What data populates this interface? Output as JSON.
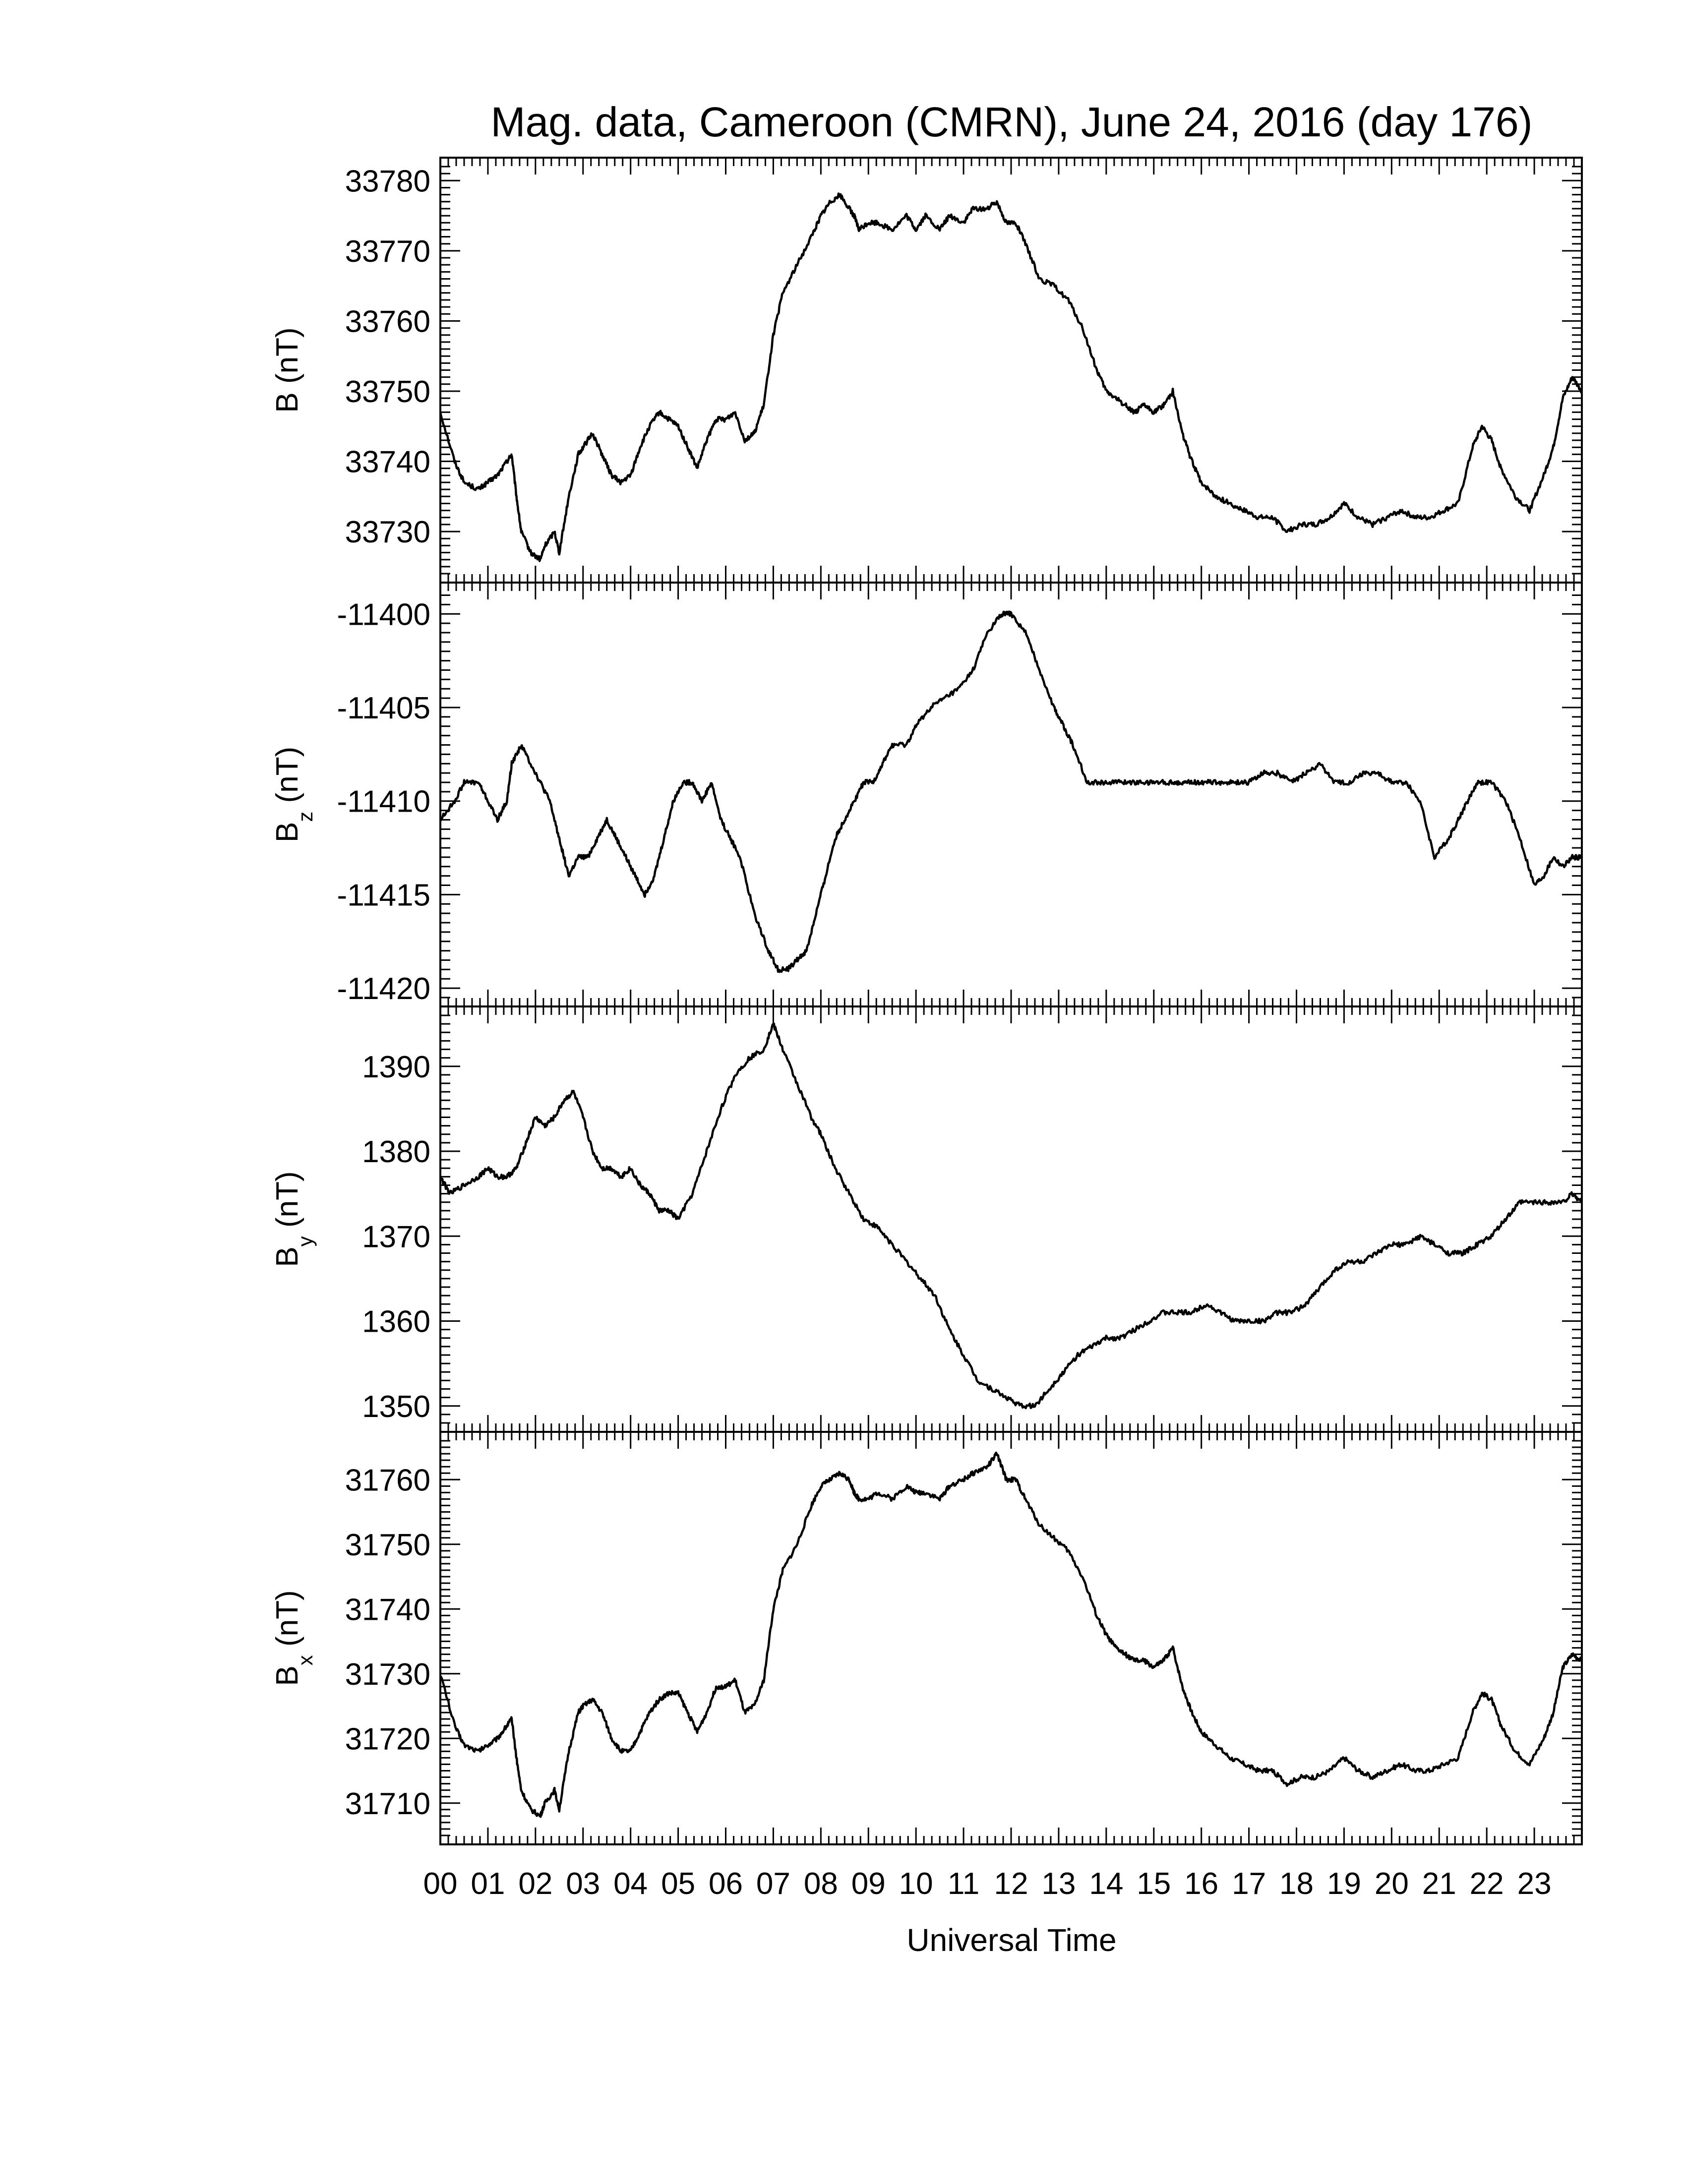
{
  "title": "Mag. data, Cameroon (CMRN), June 24, 2016 (day 176)",
  "chart_data": {
    "type": "line",
    "title": "Mag. data, Cameroon (CMRN), June 24, 2016 (day 176)",
    "xlabel": "Universal Time",
    "xlim": [
      0,
      24
    ],
    "xtick_labels": [
      "00",
      "01",
      "02",
      "03",
      "04",
      "05",
      "06",
      "07",
      "08",
      "09",
      "10",
      "11",
      "12",
      "13",
      "14",
      "15",
      "16",
      "17",
      "18",
      "19",
      "20",
      "21",
      "22",
      "23"
    ],
    "grid": false,
    "panels": [
      {
        "name": "B",
        "ylabel": "B (nT)",
        "ylabel_main": "B",
        "ylabel_sub": "",
        "ylabel_unit": " (nT)",
        "ylim": [
          33724,
          33782
        ],
        "yticks": [
          33730,
          33740,
          33750,
          33760,
          33770,
          33780
        ],
        "x": [
          0.0,
          0.3,
          0.5,
          0.8,
          1.0,
          1.2,
          1.4,
          1.5,
          1.6,
          1.7,
          1.9,
          2.1,
          2.2,
          2.4,
          2.5,
          2.7,
          2.9,
          3.0,
          3.2,
          3.4,
          3.6,
          3.8,
          4.0,
          4.2,
          4.4,
          4.6,
          4.8,
          5.0,
          5.2,
          5.4,
          5.6,
          5.8,
          6.0,
          6.2,
          6.4,
          6.6,
          6.8,
          7.0,
          7.2,
          7.5,
          7.8,
          8.0,
          8.2,
          8.4,
          8.6,
          8.7,
          8.8,
          9.0,
          9.2,
          9.5,
          9.8,
          10.0,
          10.2,
          10.5,
          10.7,
          11.0,
          11.2,
          11.5,
          11.7,
          11.9,
          12.1,
          12.3,
          12.6,
          12.9,
          13.2,
          13.5,
          13.8,
          14.0,
          14.2,
          14.4,
          14.6,
          14.8,
          15.0,
          15.2,
          15.4,
          15.6,
          15.8,
          16.0,
          16.3,
          16.6,
          16.9,
          17.2,
          17.5,
          17.8,
          18.1,
          18.4,
          18.7,
          19.0,
          19.3,
          19.6,
          19.9,
          20.2,
          20.5,
          20.8,
          21.1,
          21.4,
          21.7,
          21.9,
          22.1,
          22.3,
          22.6,
          22.9,
          23.2,
          23.4,
          23.6,
          23.8,
          24.0
        ],
        "values": [
          33747,
          33740,
          33737,
          33736,
          33737,
          33738,
          33740,
          33741,
          33735,
          33730,
          33727,
          33726,
          33728,
          33730,
          33727,
          33735,
          33741,
          33742,
          33744,
          33741,
          33738,
          33737,
          33738,
          33742,
          33745,
          33747,
          33746,
          33745,
          33742,
          33739,
          33743,
          33746,
          33746,
          33747,
          33743,
          33744,
          33748,
          33758,
          33764,
          33768,
          33772,
          33775,
          33777,
          33778,
          33776,
          33775,
          33773,
          33774,
          33774,
          33773,
          33775,
          33773,
          33775,
          33773,
          33775,
          33774,
          33776,
          33776,
          33777,
          33774,
          33774,
          33771,
          33766,
          33765,
          33763,
          33759,
          33753,
          33750,
          33749,
          33748,
          33747,
          33748,
          33747,
          33748,
          33750,
          33744,
          33740,
          33737,
          33735,
          33734,
          33733,
          33732,
          33732,
          33730,
          33731,
          33731,
          33732,
          33734,
          33732,
          33731,
          33732,
          33733,
          33732,
          33732,
          33733,
          33734,
          33742,
          33745,
          33743,
          33739,
          33735,
          33733,
          33738,
          33742,
          33749,
          33752,
          33750
        ]
      },
      {
        "name": "Bz",
        "ylabel": "Bz (nT)",
        "ylabel_main": "B",
        "ylabel_sub": "z",
        "ylabel_unit": " (nT)",
        "ylim": [
          -11420.5,
          -11398.8
        ],
        "yticks": [
          -11400,
          -11405,
          -11410,
          -11415,
          -11420
        ],
        "x": [
          0.0,
          0.3,
          0.5,
          0.8,
          1.0,
          1.2,
          1.4,
          1.5,
          1.7,
          1.9,
          2.1,
          2.3,
          2.5,
          2.7,
          2.9,
          3.1,
          3.3,
          3.5,
          3.7,
          3.9,
          4.1,
          4.3,
          4.5,
          4.7,
          4.9,
          5.1,
          5.3,
          5.5,
          5.7,
          5.9,
          6.1,
          6.3,
          6.6,
          6.9,
          7.1,
          7.3,
          7.5,
          7.7,
          7.9,
          8.1,
          8.3,
          8.5,
          8.7,
          8.9,
          9.1,
          9.3,
          9.5,
          9.8,
          10.0,
          10.3,
          10.6,
          10.9,
          11.2,
          11.5,
          11.8,
          12.0,
          12.3,
          12.6,
          12.9,
          13.1,
          13.3,
          13.6,
          13.9,
          14.2,
          14.5,
          14.8,
          15.1,
          15.4,
          15.6,
          15.8,
          16.1,
          16.4,
          16.7,
          17.0,
          17.3,
          17.6,
          17.9,
          18.2,
          18.5,
          18.8,
          19.1,
          19.4,
          19.7,
          20.0,
          20.3,
          20.6,
          20.9,
          21.2,
          21.4,
          21.6,
          21.8,
          22.1,
          22.4,
          22.7,
          23.0,
          23.2,
          23.4,
          23.6,
          23.8,
          24.0
        ],
        "values": [
          -11411,
          -11410,
          -11409,
          -11409,
          -11410,
          -11411,
          -11410,
          -11408,
          -11407,
          -11408,
          -11409,
          -11410,
          -11412,
          -11414,
          -11413,
          -11413,
          -11412,
          -11411,
          -11412,
          -11413,
          -11414,
          -11415,
          -11414,
          -11412,
          -11410,
          -11409,
          -11409,
          -11410,
          -11409,
          -11411,
          -11412,
          -11413,
          -11416,
          -11418,
          -11419,
          -11419,
          -11418.5,
          -11418,
          -11416,
          -11414,
          -11412,
          -11411,
          -11410,
          -11409,
          -11409,
          -11408,
          -11407,
          -11407,
          -11406,
          -11405,
          -11404.5,
          -11404,
          -11403,
          -11401,
          -11400,
          -11400,
          -11401,
          -11403,
          -11405,
          -11406,
          -11407,
          -11409,
          -11409,
          -11409,
          -11409,
          -11409,
          -11409,
          -11409,
          -11409,
          -11409,
          -11409,
          -11409,
          -11409,
          -11409,
          -11408.5,
          -11408.5,
          -11409,
          -11408.5,
          -11408,
          -11409,
          -11409,
          -11408.5,
          -11408.5,
          -11409,
          -11409,
          -11410,
          -11413,
          -11412,
          -11411,
          -11410,
          -11409,
          -11409,
          -11410,
          -11412,
          -11414.5,
          -11414,
          -11413,
          -11413.5,
          -11413,
          -11413
        ],
        "x_fix": null
      },
      {
        "name": "By",
        "ylabel": "By (nT)",
        "ylabel_main": "B",
        "ylabel_sub": "y",
        "ylabel_unit": " (nT)",
        "ylim": [
          1348,
          1396
        ],
        "yticks": [
          1350,
          1360,
          1370,
          1380,
          1390
        ],
        "x": [
          0.0,
          0.2,
          0.5,
          0.8,
          1.0,
          1.2,
          1.4,
          1.6,
          1.8,
          2.0,
          2.2,
          2.4,
          2.6,
          2.8,
          3.0,
          3.2,
          3.4,
          3.6,
          3.8,
          4.0,
          4.2,
          4.4,
          4.6,
          4.8,
          5.0,
          5.3,
          5.6,
          5.9,
          6.2,
          6.5,
          6.8,
          7.0,
          7.2,
          7.5,
          7.8,
          8.0,
          8.3,
          8.6,
          8.9,
          9.2,
          9.5,
          9.8,
          10.1,
          10.4,
          10.7,
          11.0,
          11.3,
          11.6,
          11.9,
          12.2,
          12.5,
          12.8,
          13.1,
          13.4,
          13.7,
          14.0,
          14.3,
          14.6,
          14.9,
          15.2,
          15.5,
          15.8,
          16.1,
          16.4,
          16.7,
          17.0,
          17.3,
          17.6,
          17.9,
          18.2,
          18.5,
          18.8,
          19.1,
          19.4,
          19.7,
          20.0,
          20.3,
          20.6,
          20.9,
          21.2,
          21.5,
          21.8,
          22.1,
          22.4,
          22.7,
          23.0,
          23.3,
          23.6,
          23.8,
          24.0
        ],
        "values": [
          1377,
          1375,
          1376,
          1377,
          1378,
          1377,
          1377,
          1378,
          1381,
          1384,
          1383,
          1384,
          1386,
          1387,
          1384,
          1380,
          1378,
          1378,
          1377,
          1378,
          1376,
          1375,
          1373,
          1373,
          1372,
          1375,
          1380,
          1385,
          1389,
          1391,
          1392,
          1395,
          1392,
          1388,
          1384,
          1382,
          1378,
          1375,
          1372,
          1371,
          1369,
          1367,
          1365,
          1363,
          1359,
          1356,
          1353,
          1352,
          1351,
          1350,
          1350,
          1352,
          1354,
          1356,
          1357,
          1358,
          1358,
          1359,
          1360,
          1361,
          1361,
          1361,
          1362,
          1361,
          1360,
          1360,
          1360,
          1361,
          1361,
          1362,
          1364,
          1366,
          1367,
          1367,
          1368,
          1369,
          1369,
          1370,
          1369,
          1368,
          1368,
          1369,
          1370,
          1372,
          1374,
          1374,
          1374,
          1374,
          1375,
          1374
        ]
      },
      {
        "name": "Bx",
        "ylabel": "Bx (nT)",
        "ylabel_main": "B",
        "ylabel_sub": "x",
        "ylabel_unit": " (nT)",
        "ylim": [
          31705,
          31766
        ],
        "yticks": [
          31710,
          31720,
          31730,
          31740,
          31750,
          31760
        ],
        "x": [
          0.0,
          0.3,
          0.5,
          0.8,
          1.0,
          1.2,
          1.4,
          1.5,
          1.6,
          1.7,
          1.9,
          2.1,
          2.2,
          2.4,
          2.5,
          2.7,
          2.9,
          3.0,
          3.2,
          3.4,
          3.6,
          3.8,
          4.0,
          4.2,
          4.4,
          4.6,
          4.8,
          5.0,
          5.2,
          5.4,
          5.6,
          5.8,
          6.0,
          6.2,
          6.4,
          6.6,
          6.8,
          7.0,
          7.2,
          7.5,
          7.8,
          8.0,
          8.2,
          8.4,
          8.6,
          8.7,
          8.8,
          9.0,
          9.2,
          9.5,
          9.8,
          10.0,
          10.2,
          10.5,
          10.7,
          11.0,
          11.2,
          11.5,
          11.7,
          11.9,
          12.1,
          12.3,
          12.6,
          12.9,
          13.2,
          13.5,
          13.8,
          14.0,
          14.2,
          14.4,
          14.6,
          14.8,
          15.0,
          15.2,
          15.4,
          15.6,
          15.8,
          16.0,
          16.3,
          16.6,
          16.9,
          17.2,
          17.5,
          17.8,
          18.1,
          18.4,
          18.7,
          19.0,
          19.3,
          19.6,
          19.9,
          20.2,
          20.5,
          20.8,
          21.1,
          21.4,
          21.7,
          21.9,
          22.1,
          22.3,
          22.6,
          22.9,
          23.2,
          23.4,
          23.6,
          23.8,
          24.0
        ],
        "values": [
          31730,
          31722,
          31719,
          31718,
          31719,
          31720,
          31722,
          31723,
          31717,
          31712,
          31709,
          31708,
          31710,
          31712,
          31709,
          31718,
          31724,
          31725,
          31726,
          31724,
          31720,
          31718,
          31718,
          31721,
          31724,
          31726,
          31727,
          31727,
          31724,
          31721,
          31724,
          31728,
          31728,
          31729,
          31724,
          31725,
          31729,
          31740,
          31746,
          31750,
          31756,
          31759,
          31760,
          31761,
          31760,
          31758,
          31757,
          31757,
          31758,
          31757,
          31759,
          31758,
          31758,
          31757,
          31759,
          31760,
          31761,
          31762,
          31764,
          31760,
          31760,
          31757,
          31753,
          31751,
          31749,
          31745,
          31739,
          31736,
          31734,
          31733,
          31732,
          31732,
          31731,
          31732,
          31734,
          31728,
          31724,
          31721,
          31719,
          31717,
          31716,
          31715,
          31715,
          31713,
          31714,
          31714,
          31715,
          31717,
          31715,
          31714,
          31715,
          31716,
          31715,
          31715,
          31716,
          31717,
          31724,
          31727,
          31726,
          31722,
          31718,
          31716,
          31720,
          31724,
          31731,
          31733,
          31732
        ]
      }
    ]
  }
}
